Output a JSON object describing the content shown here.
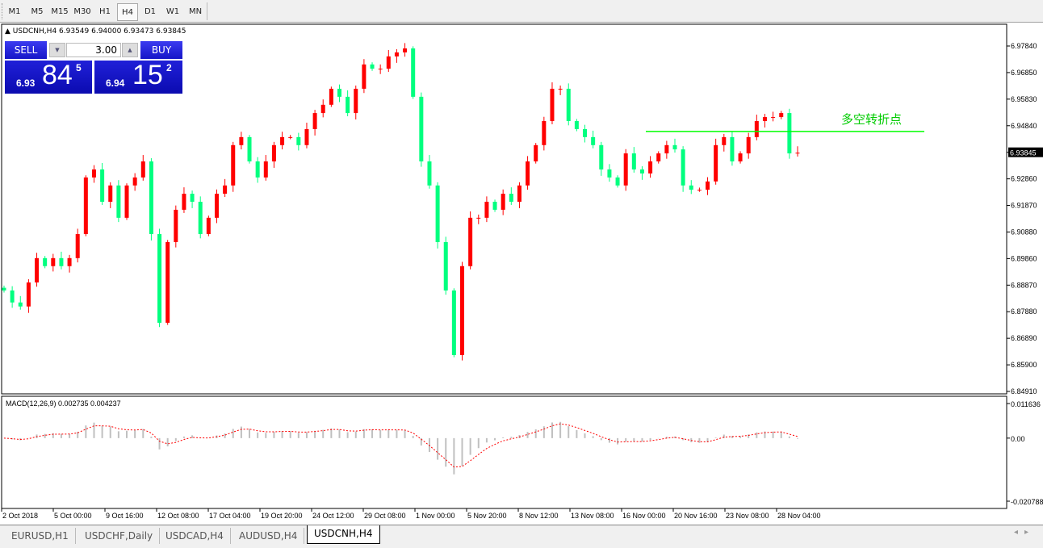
{
  "toolbar": {
    "timeframes": [
      "M1",
      "M5",
      "M15",
      "M30",
      "H1",
      "H4",
      "D1",
      "W1",
      "MN"
    ],
    "active": "H4"
  },
  "chart_header": {
    "text": "USDCNH,H4  6.93549 6.94000 6.93473 6.93845"
  },
  "trade_panel": {
    "sell_label": "SELL",
    "buy_label": "BUY",
    "lot": "3.00",
    "sell_price": {
      "big": "6.93",
      "main": "84",
      "small": "5"
    },
    "buy_price": {
      "big": "6.94",
      "main": "15",
      "small": "2"
    },
    "colors": {
      "button": "#1a1ad0"
    }
  },
  "chart_data": {
    "type": "candlestick",
    "symbol": "USDCNH",
    "timeframe": "H4",
    "ylim": [
      6.8491,
      6.9784
    ],
    "y_ticks": [
      "6.97840",
      "6.96850",
      "6.95830",
      "6.94840",
      "6.93845",
      "6.92860",
      "6.91870",
      "6.90880",
      "6.89860",
      "6.88870",
      "6.87880",
      "6.86890",
      "6.85900",
      "6.84910"
    ],
    "current_price": "6.93845",
    "x_ticks": [
      "2 Oct 2018",
      "5 Oct 00:00",
      "9 Oct 16:00",
      "12 Oct 08:00",
      "17 Oct 04:00",
      "19 Oct 20:00",
      "24 Oct 12:00",
      "29 Oct 08:00",
      "1 Nov 00:00",
      "5 Nov 20:00",
      "8 Nov 12:00",
      "13 Nov 08:00",
      "16 Nov 00:00",
      "20 Nov 16:00",
      "23 Nov 08:00",
      "28 Nov 04:00"
    ],
    "closes": [
      6.8869,
      6.8824,
      6.8809,
      6.8899,
      6.899,
      6.896,
      6.899,
      6.896,
      6.899,
      6.908,
      6.9292,
      6.9322,
      6.9201,
      6.9262,
      6.9141,
      6.9262,
      6.9292,
      6.9352,
      6.908,
      6.8748,
      6.905,
      6.9171,
      6.9231,
      6.9201,
      6.908,
      6.9141,
      6.9231,
      6.9262,
      6.9413,
      6.9443,
      6.9352,
      6.9292,
      6.9352,
      6.9413,
      6.9443,
      6.9443,
      6.9413,
      6.9473,
      6.9533,
      6.9564,
      6.9624,
      6.9594,
      6.9533,
      6.9624,
      6.9715,
      6.9699,
      6.9699,
      6.9745,
      6.976,
      6.9775,
      6.9594,
      6.9352,
      6.9262,
      6.905,
      6.8869,
      6.8627,
      6.896,
      6.9141,
      6.9141,
      6.9201,
      6.9171,
      6.9231,
      6.9201,
      6.9262,
      6.9352,
      6.9413,
      6.9503,
      6.9624,
      6.9624,
      6.9503,
      6.9473,
      6.9443,
      6.9413,
      6.9322,
      6.9292,
      6.9262,
      6.9382,
      6.9322,
      6.9307,
      6.9352,
      6.9382,
      6.9413,
      6.9397,
      6.9262,
      6.9246,
      6.9246,
      6.9277,
      6.9413,
      6.9443,
      6.9352,
      6.9382,
      6.9443,
      6.9503,
      6.9518,
      6.9518,
      6.9533,
      6.9382,
      6.93845
    ],
    "colors": {
      "up": "#ff0000",
      "down": "#00ff7f",
      "level_line": "#00ff00"
    },
    "annotation": {
      "text": "多空转折点",
      "price": 6.9464
    },
    "indicator": {
      "label": "MACD(12,26,9) 0.002735 0.004237",
      "ylim": [
        -0.020788,
        0.011636
      ],
      "y_ticks": [
        "0.011636",
        "0.00",
        "-0.020788"
      ],
      "histogram_color": "#c0c0c0",
      "signal_color": "#ff0000"
    }
  },
  "tabs": [
    {
      "label": "EURUSD,H1"
    },
    {
      "label": "USDCHF,Daily"
    },
    {
      "label": "USDCAD,H4"
    },
    {
      "label": "AUDUSD,H4"
    },
    {
      "label": "USDCNH,H4",
      "active": true
    }
  ]
}
